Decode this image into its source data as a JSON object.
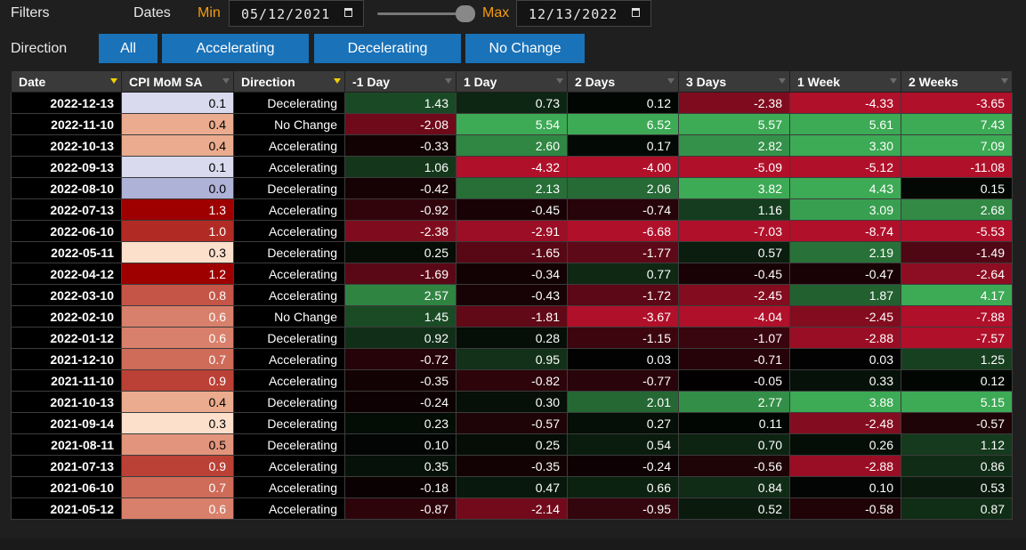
{
  "filters": {
    "title": "Filters",
    "dates_label": "Dates",
    "min_label": "Min",
    "min_value": "05/12/2021",
    "max_label": "Max",
    "max_value": "12/13/2022",
    "direction_label": "Direction",
    "direction_buttons": [
      "All",
      "Accelerating",
      "Decelerating",
      "No Change"
    ],
    "slider_position": 0.95
  },
  "table": {
    "columns": [
      "Date",
      "CPI MoM SA",
      "Direction",
      "-1 Day",
      "1 Day",
      "2 Days",
      "3 Days",
      "1 Week",
      "2 Weeks"
    ],
    "active_filter_columns": [
      "Date",
      "Direction"
    ],
    "rows": [
      [
        "2022-12-13",
        "0.1",
        "Decelerating",
        "1.43",
        "0.73",
        "0.12",
        "-2.38",
        "-4.33",
        "-3.65"
      ],
      [
        "2022-11-10",
        "0.4",
        "No Change",
        "-2.08",
        "5.54",
        "6.52",
        "5.57",
        "5.61",
        "7.43"
      ],
      [
        "2022-10-13",
        "0.4",
        "Accelerating",
        "-0.33",
        "2.60",
        "0.17",
        "2.82",
        "3.30",
        "7.09"
      ],
      [
        "2022-09-13",
        "0.1",
        "Accelerating",
        "1.06",
        "-4.32",
        "-4.00",
        "-5.09",
        "-5.12",
        "-11.08"
      ],
      [
        "2022-08-10",
        "0.0",
        "Decelerating",
        "-0.42",
        "2.13",
        "2.06",
        "3.82",
        "4.43",
        "0.15"
      ],
      [
        "2022-07-13",
        "1.3",
        "Accelerating",
        "-0.92",
        "-0.45",
        "-0.74",
        "1.16",
        "3.09",
        "2.68"
      ],
      [
        "2022-06-10",
        "1.0",
        "Accelerating",
        "-2.38",
        "-2.91",
        "-6.68",
        "-7.03",
        "-8.74",
        "-5.53"
      ],
      [
        "2022-05-11",
        "0.3",
        "Decelerating",
        "0.25",
        "-1.65",
        "-1.77",
        "0.57",
        "2.19",
        "-1.49"
      ],
      [
        "2022-04-12",
        "1.2",
        "Accelerating",
        "-1.69",
        "-0.34",
        "0.77",
        "-0.45",
        "-0.47",
        "-2.64"
      ],
      [
        "2022-03-10",
        "0.8",
        "Accelerating",
        "2.57",
        "-0.43",
        "-1.72",
        "-2.45",
        "1.87",
        "4.17"
      ],
      [
        "2022-02-10",
        "0.6",
        "No Change",
        "1.45",
        "-1.81",
        "-3.67",
        "-4.04",
        "-2.45",
        "-7.88"
      ],
      [
        "2022-01-12",
        "0.6",
        "Decelerating",
        "0.92",
        "0.28",
        "-1.15",
        "-1.07",
        "-2.88",
        "-7.57"
      ],
      [
        "2021-12-10",
        "0.7",
        "Accelerating",
        "-0.72",
        "0.95",
        "0.03",
        "-0.71",
        "0.03",
        "1.25"
      ],
      [
        "2021-11-10",
        "0.9",
        "Accelerating",
        "-0.35",
        "-0.82",
        "-0.77",
        "-0.05",
        "0.33",
        "0.12"
      ],
      [
        "2021-10-13",
        "0.4",
        "Decelerating",
        "-0.24",
        "0.30",
        "2.01",
        "2.77",
        "3.88",
        "5.15"
      ],
      [
        "2021-09-14",
        "0.3",
        "Decelerating",
        "0.23",
        "-0.57",
        "0.27",
        "0.11",
        "-2.48",
        "-0.57"
      ],
      [
        "2021-08-11",
        "0.5",
        "Decelerating",
        "0.10",
        "0.25",
        "0.54",
        "0.70",
        "0.26",
        "1.12"
      ],
      [
        "2021-07-13",
        "0.9",
        "Accelerating",
        "0.35",
        "-0.35",
        "-0.24",
        "-0.56",
        "-2.88",
        "0.86"
      ],
      [
        "2021-06-10",
        "0.7",
        "Accelerating",
        "-0.18",
        "0.47",
        "0.66",
        "0.84",
        "0.10",
        "0.53"
      ],
      [
        "2021-05-12",
        "0.6",
        "Accelerating",
        "-0.87",
        "-2.14",
        "-0.95",
        "0.52",
        "-0.58",
        "0.87"
      ]
    ]
  },
  "colors": {
    "button_blue": "#1a72b8",
    "accent_orange": "#f39c12",
    "filter_active": "#f2d000",
    "positive_max": "#3daa55",
    "negative_max": "#b0102a",
    "cpi_low": "#aeb2d6",
    "cpi_mid": "#f5c0a0",
    "cpi_high": "#9e0000"
  }
}
